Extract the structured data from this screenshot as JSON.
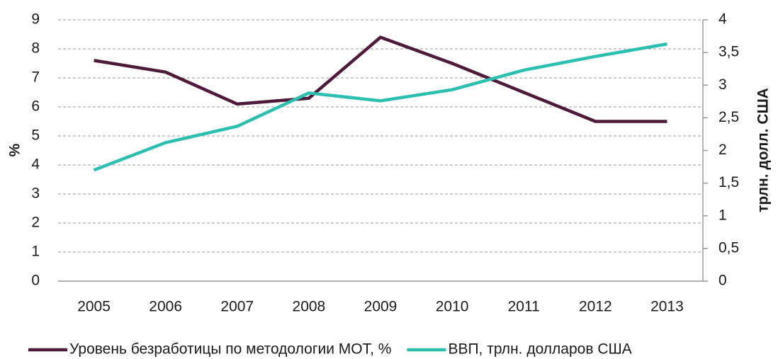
{
  "chart_data": {
    "type": "line",
    "categories": [
      "2005",
      "2006",
      "2007",
      "2008",
      "2009",
      "2010",
      "2011",
      "2012",
      "2013"
    ],
    "series": [
      {
        "name": "Уровень безработицы по методологии МОТ, %",
        "color": "#4d1a3a",
        "values": [
          7.6,
          7.2,
          6.1,
          6.3,
          8.4,
          7.5,
          6.5,
          5.5,
          5.5
        ]
      },
      {
        "name": "ВВП, трлн. долларов США",
        "color": "#2bbfb0",
        "axis": "y2",
        "values": [
          1.7,
          2.12,
          2.37,
          2.88,
          2.76,
          2.93,
          3.23,
          3.44,
          3.63
        ]
      }
    ],
    "ylabel": "%",
    "y2label": "трлн. долл. США",
    "ylim": [
      0,
      9
    ],
    "yticks": [
      0,
      1,
      2,
      3,
      4,
      5,
      6,
      7,
      8,
      9
    ],
    "y2lim": [
      0,
      4
    ],
    "y2ticks": [
      0,
      {
        "value": 0.5,
        "label": "0,5"
      },
      1,
      {
        "value": 1.5,
        "label": "1,5"
      },
      2,
      {
        "value": 2.5,
        "label": "2,5"
      },
      3,
      {
        "value": 3.5,
        "label": "3,5"
      },
      4
    ],
    "grid": true,
    "legend": "bottom"
  }
}
